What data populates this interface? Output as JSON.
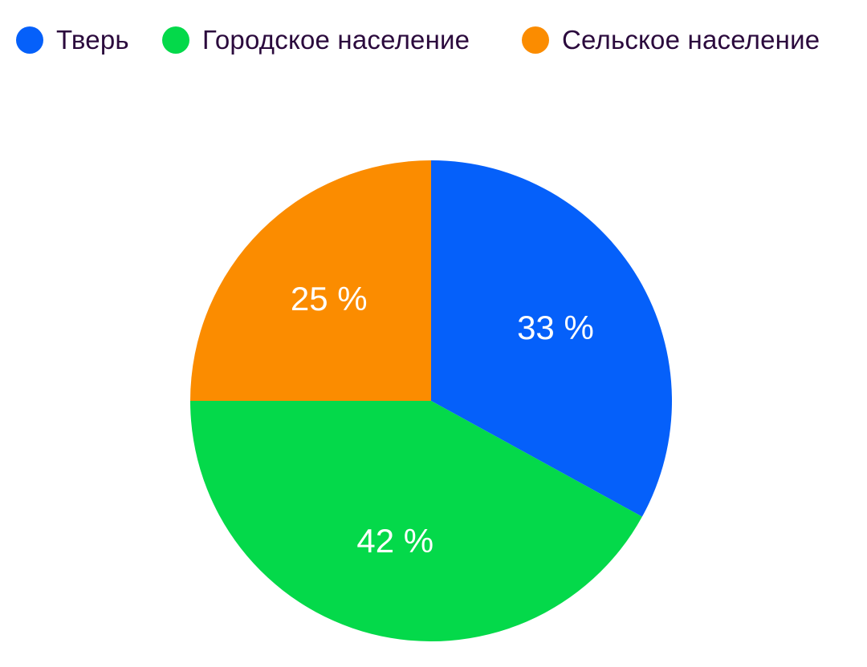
{
  "chart_data": {
    "type": "pie",
    "title": "",
    "categories": [
      "Тверь",
      "Городское население",
      "Сельское население"
    ],
    "values": [
      33,
      42,
      25
    ],
    "labels": [
      "33 %",
      "42 %",
      "25 %"
    ],
    "colors": [
      "#0560fa",
      "#04d94a",
      "#fb8c00"
    ],
    "start": "12 o'clock",
    "direction": "clockwise",
    "legend": "top"
  }
}
